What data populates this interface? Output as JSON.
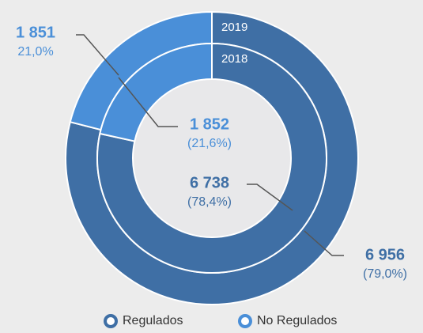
{
  "chart_data": {
    "type": "donut",
    "categories": [
      "Regulados",
      "No Regulados"
    ],
    "colors": [
      "#3f6fa5",
      "#4a8fd8"
    ],
    "rings": [
      {
        "name": "2019",
        "values": [
          6956,
          1851
        ],
        "value_labels": [
          "6 956",
          "1 851"
        ],
        "percentages": [
          79.0,
          21.0
        ],
        "percentage_labels": [
          "(79,0%)",
          "21,0%"
        ]
      },
      {
        "name": "2018",
        "values": [
          6738,
          1852
        ],
        "value_labels": [
          "6 738",
          "1 852"
        ],
        "percentages": [
          78.4,
          21.6
        ],
        "percentage_labels": [
          "(78,4%)",
          "(21,6%)"
        ]
      }
    ],
    "legend": "bottom"
  }
}
